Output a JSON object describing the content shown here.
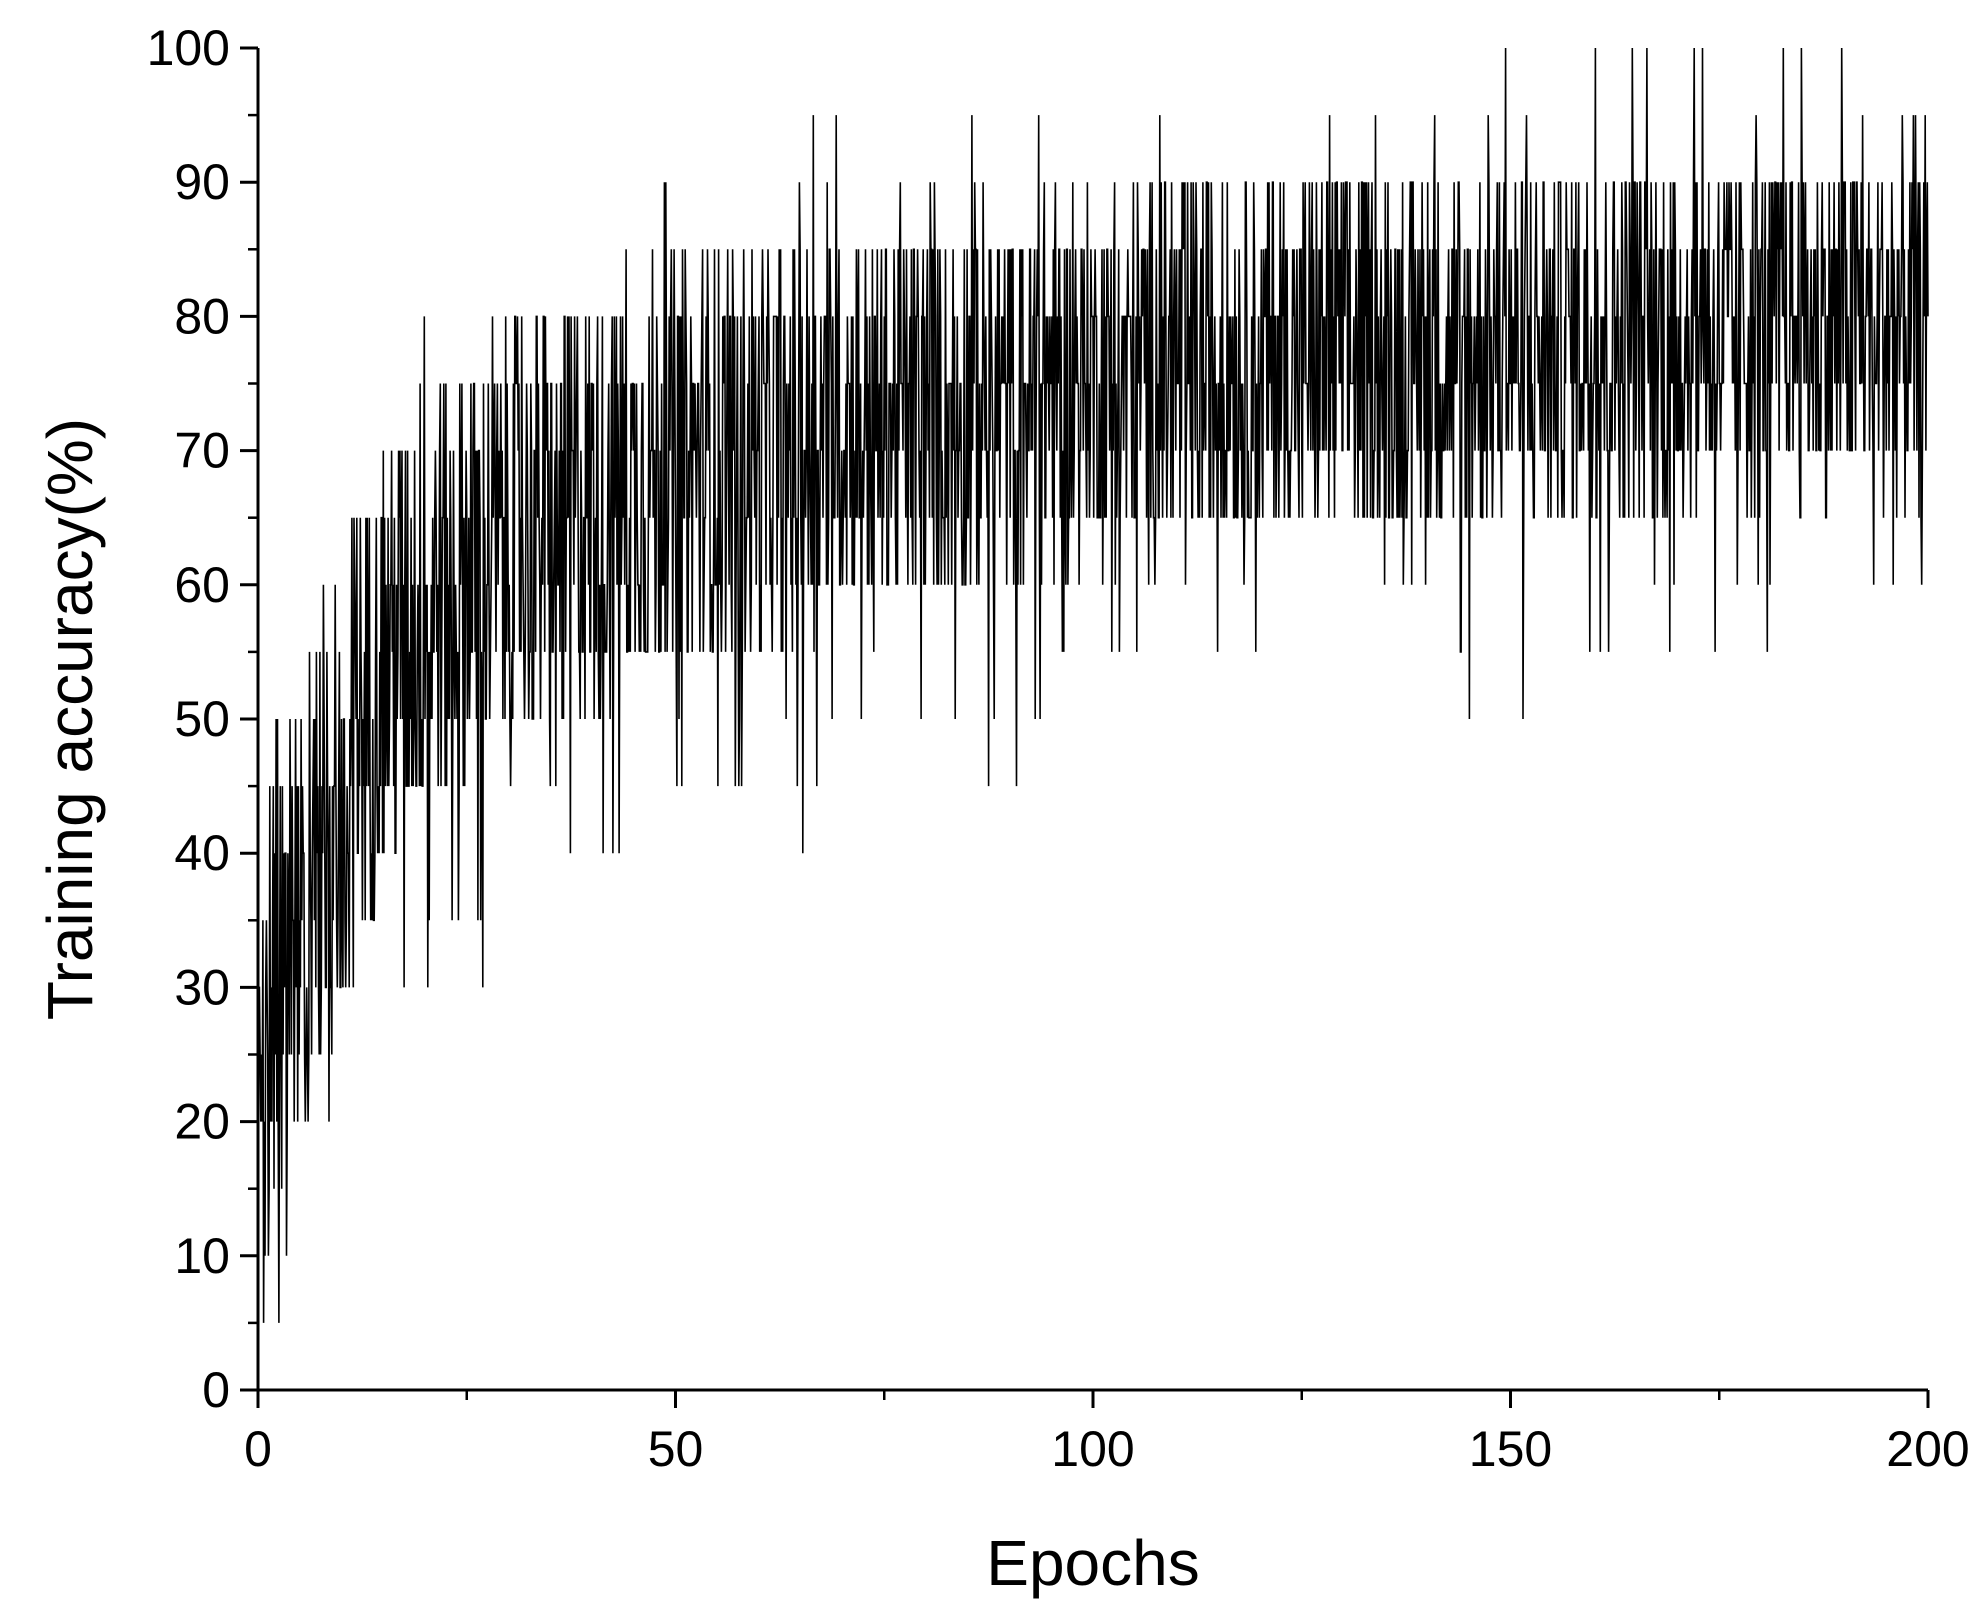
{
  "chart_data": {
    "type": "line",
    "title": "",
    "xlabel": "Epochs",
    "ylabel": "Training accuracy(%)",
    "xlim": [
      0,
      200
    ],
    "ylim": [
      0,
      100
    ],
    "x_ticks": [
      0,
      50,
      100,
      150,
      200
    ],
    "y_ticks": [
      0,
      10,
      20,
      30,
      40,
      50,
      60,
      70,
      80,
      90,
      100
    ],
    "x_tick_labels": [
      "0",
      "50",
      "100",
      "150",
      "200"
    ],
    "y_tick_labels": [
      "0",
      "10",
      "20",
      "30",
      "40",
      "50",
      "60",
      "70",
      "80",
      "90",
      "100"
    ],
    "grid": false,
    "legend": "none",
    "line_color": "#000000",
    "series": [
      {
        "x": [
          0,
          2,
          4,
          6,
          8,
          10,
          12,
          15,
          20,
          25,
          30,
          35,
          40,
          45,
          50,
          55,
          60,
          65,
          70,
          75,
          80,
          85,
          90,
          95,
          100,
          110,
          120,
          130,
          140,
          150,
          160,
          170,
          180,
          190,
          200
        ],
        "y": [
          18,
          32,
          40,
          44,
          45,
          48,
          52,
          56,
          59,
          63,
          65,
          67,
          68,
          69,
          70,
          70,
          71,
          72,
          73,
          73,
          74,
          74,
          75,
          75,
          76,
          77,
          77,
          78,
          78,
          79,
          79,
          80,
          80,
          80,
          81
        ],
        "band_low": [
          0,
          12,
          18,
          22,
          24,
          28,
          33,
          38,
          42,
          45,
          47,
          49,
          50,
          52,
          53,
          54,
          55,
          56,
          58,
          58,
          59,
          59,
          60,
          61,
          62,
          62,
          63,
          63,
          64,
          64,
          65,
          65,
          66,
          66,
          66
        ],
        "band_high": [
          40,
          48,
          52,
          56,
          60,
          62,
          66,
          71,
          75,
          78,
          80,
          81,
          82,
          83,
          84,
          85,
          85,
          86,
          86,
          87,
          87,
          88,
          88,
          89,
          89,
          90,
          90,
          91,
          91,
          91,
          92,
          92,
          92,
          93,
          93
        ],
        "spike_low": [
          0,
          5,
          10,
          15,
          15,
          10,
          15,
          25,
          30,
          30,
          35,
          40,
          35,
          40,
          45,
          40,
          45,
          40,
          45,
          50,
          45,
          50,
          40,
          50,
          50,
          55,
          55,
          55,
          55,
          45,
          55,
          55,
          55,
          55,
          60
        ],
        "spike_high": [
          45,
          50,
          55,
          60,
          65,
          65,
          70,
          75,
          80,
          80,
          85,
          85,
          90,
          90,
          90,
          90,
          90,
          95,
          95,
          95,
          95,
          95,
          95,
          95,
          95,
          95,
          95,
          95,
          95,
          100,
          100,
          100,
          100,
          100,
          100
        ]
      }
    ]
  }
}
